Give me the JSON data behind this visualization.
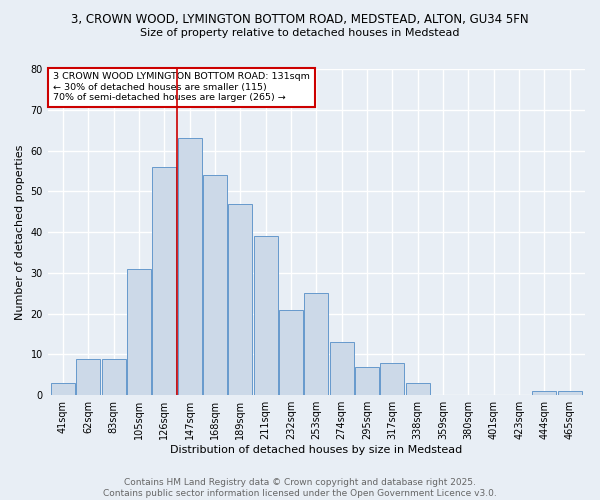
{
  "title_line1": "3, CROWN WOOD, LYMINGTON BOTTOM ROAD, MEDSTEAD, ALTON, GU34 5FN",
  "title_line2": "Size of property relative to detached houses in Medstead",
  "xlabel": "Distribution of detached houses by size in Medstead",
  "ylabel": "Number of detached properties",
  "bar_labels": [
    "41sqm",
    "62sqm",
    "83sqm",
    "105sqm",
    "126sqm",
    "147sqm",
    "168sqm",
    "189sqm",
    "211sqm",
    "232sqm",
    "253sqm",
    "274sqm",
    "295sqm",
    "317sqm",
    "338sqm",
    "359sqm",
    "380sqm",
    "401sqm",
    "423sqm",
    "444sqm",
    "465sqm"
  ],
  "bar_values": [
    3,
    9,
    9,
    31,
    56,
    63,
    54,
    47,
    39,
    21,
    25,
    13,
    7,
    8,
    3,
    0,
    0,
    0,
    0,
    1,
    1
  ],
  "bar_color": "#ccd9e8",
  "bar_edge_color": "#6699cc",
  "vline_color": "#cc0000",
  "vline_position": 4.5,
  "annotation_text": "3 CROWN WOOD LYMINGTON BOTTOM ROAD: 131sqm\n← 30% of detached houses are smaller (115)\n70% of semi-detached houses are larger (265) →",
  "annotation_box_color": "#ffffff",
  "annotation_box_edge": "#cc0000",
  "footer_line1": "Contains HM Land Registry data © Crown copyright and database right 2025.",
  "footer_line2": "Contains public sector information licensed under the Open Government Licence v3.0.",
  "ylim": [
    0,
    80
  ],
  "yticks": [
    0,
    10,
    20,
    30,
    40,
    50,
    60,
    70,
    80
  ],
  "background_color": "#e8eef5",
  "grid_color": "#ffffff",
  "title_fontsize": 8.5,
  "subtitle_fontsize": 8,
  "ylabel_fontsize": 8,
  "xlabel_fontsize": 8,
  "tick_fontsize": 7,
  "footer_fontsize": 6.5
}
